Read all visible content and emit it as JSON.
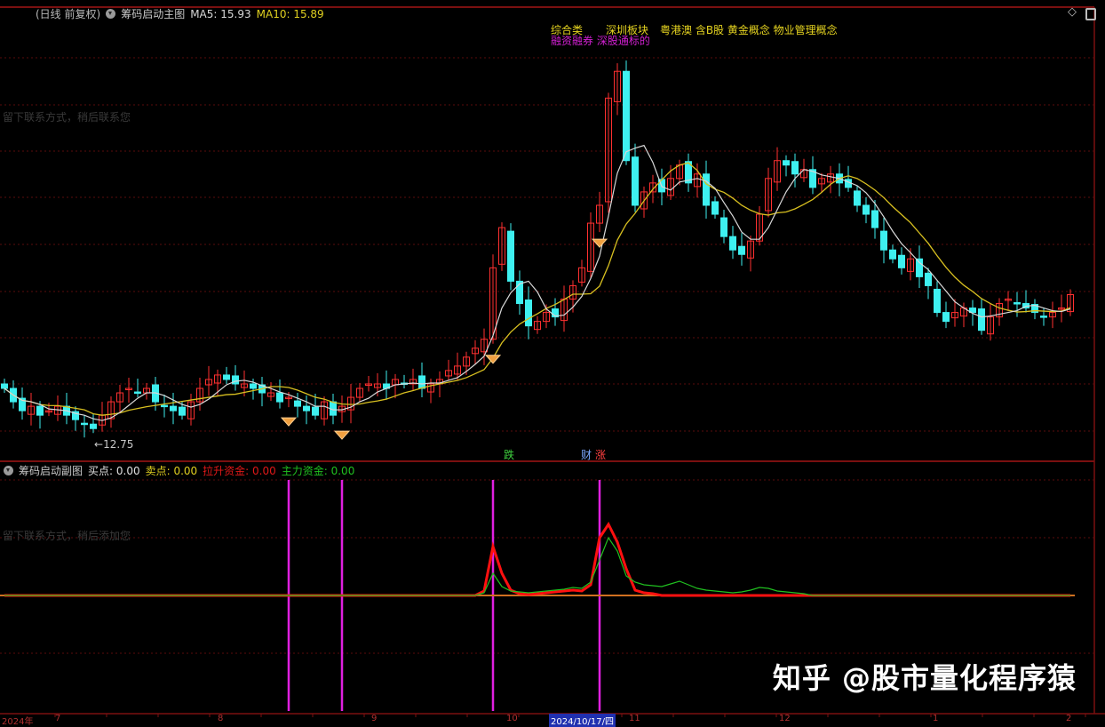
{
  "header": {
    "period": "(日线 前复权)",
    "indicator_name": "筹码启动主图",
    "ma5_label": "MA5: 15.93",
    "ma10_label": "MA10: 15.89"
  },
  "sub_header": {
    "indicator_name": "筹码启动副图",
    "buy_label": "买点: 0.00",
    "sell_label": "卖点: 0.00",
    "lift_fund_label": "拉升资金: 0.00",
    "main_fund_label": "主力资金: 0.00"
  },
  "window_icons": [
    "diamond-icon",
    "maximize-icon"
  ],
  "ghost_text": {
    "main": "留下联系方式，稍后联系您",
    "sub": "留下联系方式，稍后添加您"
  },
  "concept_tags": {
    "yellow": [
      "综合类",
      "深圳板块",
      "粤港澳 含B股 黄金概念 物业管理概念"
    ],
    "magenta": "融资融券 深股通标的"
  },
  "event_markers": [
    {
      "text": "跌",
      "color": "#3fd23f"
    },
    {
      "text": "财",
      "color": "#7aa8ff"
    },
    {
      "text": "涨",
      "color": "#ff4040"
    }
  ],
  "low_label": "12.75",
  "x_axis": {
    "labels": [
      "2024年",
      "7",
      "8",
      "9",
      "10",
      "11",
      "12",
      "1",
      "2"
    ],
    "cursor_date": "2024/10/17/四"
  },
  "watermark": "知乎 @股市量化程序猿",
  "colors": {
    "up": "#ff3030",
    "down": "#3ef0f0",
    "ma5": "#d8d8d8",
    "ma10": "#d8c020",
    "buy_line": "#e020e0",
    "lift_fund": "#ff1010",
    "main_fund": "#20c020",
    "grid": "#7a1010"
  },
  "chart_data": {
    "type": "candlestick",
    "closes": [
      13.9,
      13.6,
      13.4,
      13.5,
      13.3,
      13.4,
      13.5,
      13.3,
      13.2,
      13.1,
      13.0,
      13.3,
      13.6,
      13.8,
      13.9,
      13.8,
      13.9,
      13.6,
      13.5,
      13.4,
      13.3,
      13.6,
      13.9,
      14.1,
      14.2,
      14.1,
      14.0,
      14.0,
      13.9,
      13.8,
      13.8,
      13.6,
      13.7,
      13.5,
      13.4,
      13.3,
      13.6,
      13.3,
      13.5,
      13.7,
      13.9,
      14.0,
      14.0,
      13.9,
      14.1,
      14.0,
      14.1,
      13.9,
      14.0,
      14.1,
      14.3,
      14.4,
      14.6,
      14.8,
      15.0,
      16.6,
      17.5,
      16.3,
      15.8,
      15.3,
      15.4,
      15.6,
      15.5,
      15.9,
      16.2,
      16.6,
      17.6,
      18.0,
      20.4,
      21.0,
      19.0,
      18.0,
      18.3,
      18.5,
      18.3,
      18.6,
      18.9,
      18.5,
      18.7,
      18.0,
      17.8,
      17.3,
      17.0,
      16.9,
      17.2,
      17.8,
      18.6,
      19.0,
      18.9,
      18.7,
      18.8,
      18.4,
      18.6,
      18.7,
      18.5,
      18.4,
      18.0,
      17.8,
      17.5,
      17.0,
      16.8,
      16.6,
      16.8,
      16.4,
      16.2,
      15.6,
      15.4,
      15.6,
      15.7,
      15.6,
      15.2,
      15.5,
      15.8,
      15.9,
      15.8,
      15.7,
      15.6,
      15.5,
      15.6,
      15.7,
      16.0
    ],
    "low_point": 12.75,
    "buy_signal_indices": [
      32,
      38,
      55,
      67
    ],
    "sub_series": [
      {
        "name": "拉升资金",
        "values": {
          "54": 0.5,
          "55": 5.5,
          "56": 2.5,
          "57": 0.6,
          "58": 0.2,
          "59": 0.1,
          "60": 0.2,
          "61": 0.3,
          "62": 0.4,
          "63": 0.5,
          "64": 0.6,
          "65": 0.5,
          "66": 1.2,
          "67": 6.5,
          "68": 8.0,
          "69": 6.0,
          "70": 3.0,
          "71": 0.6,
          "72": 0.3,
          "73": 0.2
        }
      },
      {
        "name": "主力资金",
        "values": {
          "54": 0.3,
          "55": 2.5,
          "56": 1.0,
          "57": 0.5,
          "58": 0.4,
          "59": 0.3,
          "60": 0.4,
          "61": 0.5,
          "62": 0.6,
          "63": 0.7,
          "64": 0.9,
          "65": 0.8,
          "66": 1.5,
          "67": 4.0,
          "68": 6.5,
          "69": 5.0,
          "70": 2.2,
          "71": 1.5,
          "72": 1.2,
          "73": 1.1,
          "74": 1.0,
          "75": 1.3,
          "76": 1.6,
          "77": 1.2,
          "78": 0.8,
          "79": 0.6,
          "80": 0.5,
          "81": 0.4,
          "82": 0.3,
          "83": 0.4,
          "84": 0.6,
          "85": 0.9,
          "86": 0.8,
          "87": 0.5,
          "88": 0.4,
          "89": 0.3,
          "90": 0.2
        }
      }
    ]
  }
}
